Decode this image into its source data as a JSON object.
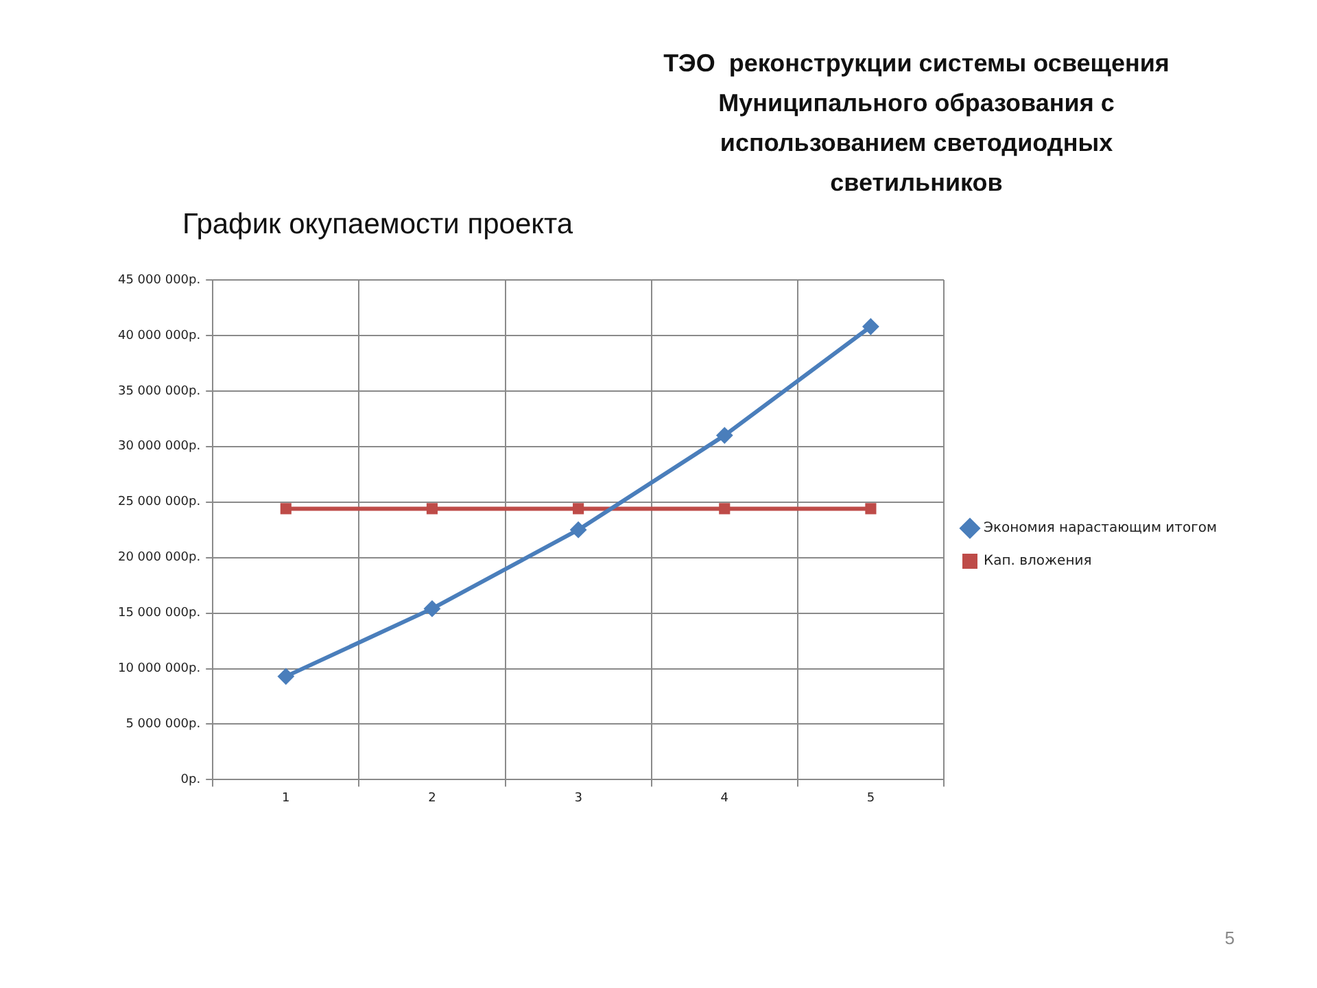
{
  "chart_data": {
    "type": "line",
    "title": "ТЭО  реконструкции системы освещения Муниципального образования с использованием светодиодных светильников",
    "subtitle": "График окупаемости проекта",
    "categories": [
      "1",
      "2",
      "3",
      "4",
      "5"
    ],
    "series": [
      {
        "name": "Экономия нарастающим итогом",
        "color": "#4a7ebb",
        "marker": "diamond",
        "values": [
          9300000,
          15400000,
          22500000,
          31000000,
          40800000
        ]
      },
      {
        "name": "Кап. вложения",
        "color": "#be4b48",
        "marker": "square",
        "values": [
          24400000,
          24400000,
          24400000,
          24400000,
          24400000
        ]
      }
    ],
    "ylim": [
      0,
      45000000
    ],
    "yticks": [
      {
        "value": 0,
        "label": "0р."
      },
      {
        "value": 5000000,
        "label": "5 000 000р."
      },
      {
        "value": 10000000,
        "label": "10 000 000р."
      },
      {
        "value": 15000000,
        "label": "15 000 000р."
      },
      {
        "value": 20000000,
        "label": "20 000 000р."
      },
      {
        "value": 25000000,
        "label": "25 000 000р."
      },
      {
        "value": 30000000,
        "label": "30 000 000р."
      },
      {
        "value": 35000000,
        "label": "35 000 000р."
      },
      {
        "value": 40000000,
        "label": "40 000 000р."
      },
      {
        "value": 45000000,
        "label": "45 000 000р."
      }
    ],
    "grid": true,
    "legend": "right",
    "line_style": "solid",
    "annotations": [
      "5"
    ]
  }
}
